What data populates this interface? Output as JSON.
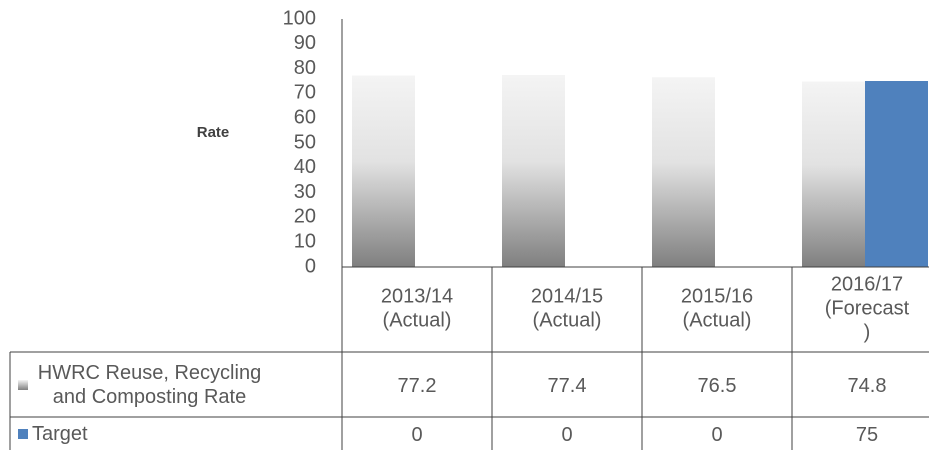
{
  "chart_data": {
    "type": "bar",
    "y_label": "Rate",
    "categories": [
      "2013/14 (Actual)",
      "2014/15 (Actual)",
      "2015/16 (Actual)",
      "2016/17 (Forecast )"
    ],
    "series": [
      {
        "name": "HWRC Reuse, Recycling and Composting Rate",
        "color": "#7f7f7f",
        "gradient": true,
        "values": [
          77.2,
          77.4,
          76.5,
          74.8
        ]
      },
      {
        "name": "Target",
        "color": "#4f81bd",
        "values": [
          0,
          0,
          0,
          75
        ]
      }
    ],
    "ylim": [
      0,
      100
    ],
    "yticks": [
      0,
      10,
      20,
      30,
      40,
      50,
      60,
      70,
      80,
      90,
      100
    ],
    "grid": false,
    "data_table": true
  }
}
